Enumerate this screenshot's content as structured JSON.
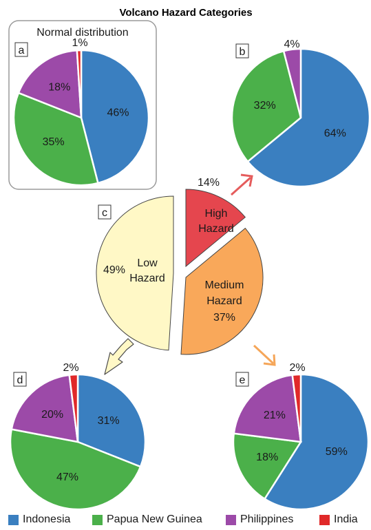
{
  "title": "Volcano Hazard Categories",
  "colors": {
    "Indonesia": "#3a7fc0",
    "Papua New Guinea": "#4bb04a",
    "Philippines": "#9c4aa8",
    "India": "#e02929",
    "high": "#e5464e",
    "medium": "#f9a85a",
    "low": "#fff8c6",
    "arrow_high": "#e55c5c",
    "arrow_medium": "#f5a659",
    "arrow_low": "#fff8c6"
  },
  "legend": [
    {
      "label": "Indonesia",
      "color": "#3a7fc0"
    },
    {
      "label": "Papua New Guinea",
      "color": "#4bb04a"
    },
    {
      "label": "Philippines",
      "color": "#9c4aa8"
    },
    {
      "label": "India",
      "color": "#e02929"
    }
  ],
  "chart_data": [
    {
      "id": "a",
      "type": "pie",
      "panel_label": "a",
      "title": "Normal distribution",
      "slices": [
        {
          "name": "Indonesia",
          "value": 46,
          "label": "46%"
        },
        {
          "name": "Papua New Guinea",
          "value": 35,
          "label": "35%"
        },
        {
          "name": "Philippines",
          "value": 18,
          "label": "18%"
        },
        {
          "name": "India",
          "value": 1,
          "label": "1%"
        }
      ]
    },
    {
      "id": "b",
      "type": "pie",
      "panel_label": "b",
      "title": "",
      "slices": [
        {
          "name": "Indonesia",
          "value": 64,
          "label": "64%"
        },
        {
          "name": "Papua New Guinea",
          "value": 32,
          "label": "32%"
        },
        {
          "name": "Philippines",
          "value": 4,
          "label": "4%"
        }
      ]
    },
    {
      "id": "c",
      "type": "pie",
      "panel_label": "c",
      "title": "",
      "slices": [
        {
          "name": "High Hazard",
          "value": 14,
          "label_lines": [
            "High",
            "Hazard"
          ],
          "value_label": "14%"
        },
        {
          "name": "Medium Hazard",
          "value": 37,
          "label_lines": [
            "Medium",
            "Hazard",
            "37%"
          ]
        },
        {
          "name": "Low Hazard",
          "value": 49,
          "label_lines": [
            "Low",
            "Hazard"
          ],
          "value_label": "49%"
        }
      ]
    },
    {
      "id": "d",
      "type": "pie",
      "panel_label": "d",
      "title": "",
      "slices": [
        {
          "name": "Indonesia",
          "value": 31,
          "label": "31%"
        },
        {
          "name": "Papua New Guinea",
          "value": 47,
          "label": "47%"
        },
        {
          "name": "Philippines",
          "value": 20,
          "label": "20%"
        },
        {
          "name": "India",
          "value": 2,
          "label": "2%"
        }
      ]
    },
    {
      "id": "e",
      "type": "pie",
      "panel_label": "e",
      "title": "",
      "slices": [
        {
          "name": "Indonesia",
          "value": 59,
          "label": "59%"
        },
        {
          "name": "Papua New Guinea",
          "value": 18,
          "label": "18%"
        },
        {
          "name": "Philippines",
          "value": 21,
          "label": "21%"
        },
        {
          "name": "India",
          "value": 2,
          "label": "2%"
        }
      ]
    }
  ]
}
